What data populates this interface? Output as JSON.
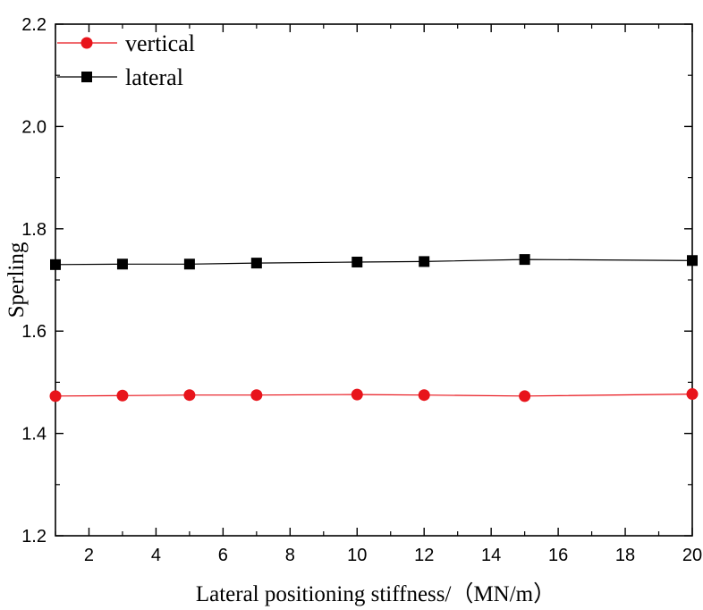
{
  "chart_data": {
    "type": "line",
    "xlabel": "Lateral positioning stiffness/（MN/m）",
    "ylabel": "Sperling",
    "xlim": [
      1,
      20
    ],
    "ylim": [
      1.2,
      2.2
    ],
    "x_ticks": [
      2,
      4,
      6,
      8,
      10,
      12,
      14,
      16,
      18,
      20
    ],
    "y_ticks": [
      1.2,
      1.4,
      1.6,
      1.8,
      2.0,
      2.2
    ],
    "x_tick_labels": [
      "2",
      "4",
      "6",
      "8",
      "10",
      "12",
      "14",
      "16",
      "18",
      "20"
    ],
    "y_tick_labels": [
      "1.2",
      "1.4",
      "1.6",
      "1.8",
      "2.0",
      "2.2"
    ],
    "legend_position": "top-left",
    "grid": false,
    "x": [
      1,
      3,
      5,
      7,
      10,
      12,
      15,
      20
    ],
    "series": [
      {
        "name": "vertical",
        "color": "#e8141b",
        "marker": "circle",
        "values": [
          1.473,
          1.474,
          1.475,
          1.475,
          1.476,
          1.475,
          1.473,
          1.477
        ]
      },
      {
        "name": "lateral",
        "color": "#000000",
        "marker": "square",
        "values": [
          1.73,
          1.731,
          1.731,
          1.733,
          1.735,
          1.736,
          1.74,
          1.738
        ]
      }
    ]
  }
}
